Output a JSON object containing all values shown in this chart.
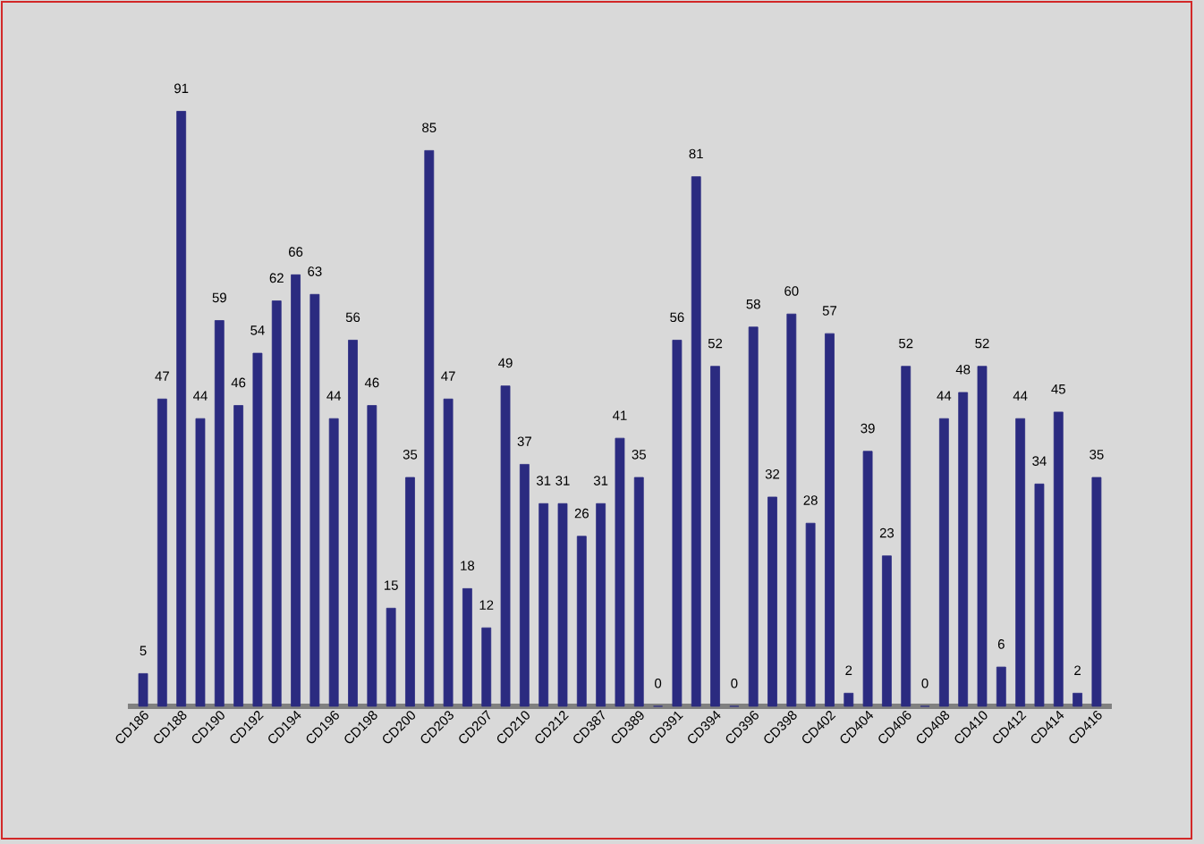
{
  "chart_data": {
    "type": "bar",
    "categories": [
      "CD186",
      null,
      "CD188",
      null,
      "CD190",
      null,
      "CD192",
      null,
      "CD194",
      null,
      "CD196",
      null,
      "CD198",
      null,
      "CD200",
      null,
      "CD203",
      null,
      "CD207",
      null,
      "CD210",
      null,
      "CD212",
      null,
      "CD387",
      null,
      "CD389",
      null,
      "CD391",
      null,
      "CD394",
      null,
      "CD396",
      null,
      "CD398",
      null,
      "CD402",
      null,
      "CD404",
      null,
      "CD406",
      null,
      "CD408",
      null,
      "CD410",
      null,
      "CD412",
      null,
      "CD414",
      null,
      "CD416"
    ],
    "values": [
      5,
      47,
      91,
      44,
      59,
      46,
      54,
      62,
      66,
      63,
      44,
      56,
      46,
      15,
      35,
      85,
      47,
      18,
      12,
      49,
      37,
      31,
      31,
      26,
      31,
      41,
      35,
      0,
      56,
      81,
      52,
      0,
      58,
      32,
      60,
      28,
      57,
      2,
      39,
      23,
      52,
      0,
      44,
      48,
      52,
      6,
      44,
      34,
      45,
      2,
      35
    ],
    "color": "#2b2b80",
    "data_labels": true
  }
}
